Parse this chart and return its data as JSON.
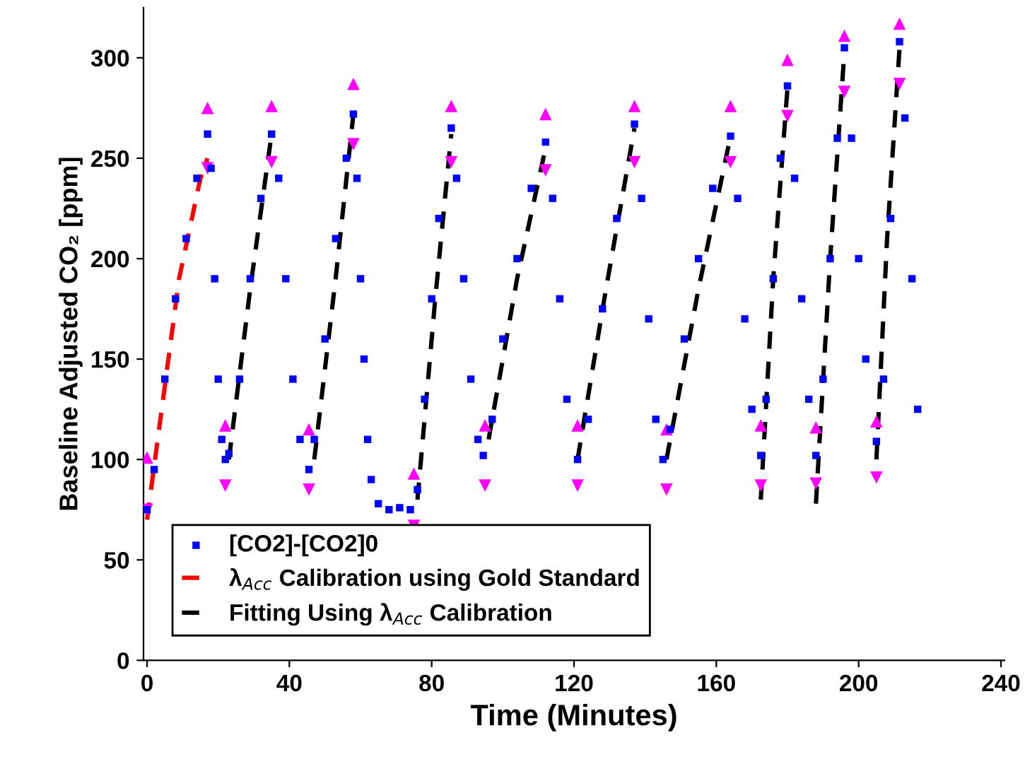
{
  "chart_data": {
    "type": "scatter",
    "xlabel": "Time (Minutes)",
    "ylabel": "Baseline Adjusted CO₂ [ppm]",
    "xlim": [
      -1,
      241
    ],
    "ylim": [
      0,
      325
    ],
    "xticks": [
      0,
      40,
      80,
      120,
      160,
      200,
      240
    ],
    "yticks": [
      0,
      50,
      100,
      150,
      200,
      250,
      300
    ],
    "grid": false,
    "legend": "bottom left",
    "series": [
      {
        "name": "[CO2]-[CO2]0",
        "marker": "square",
        "color": "#0000ff",
        "x": [
          0,
          2,
          5,
          8,
          11,
          14,
          17,
          18,
          19,
          20,
          21,
          22,
          23,
          26,
          29,
          32,
          35,
          37,
          39,
          41,
          43,
          45.5,
          47,
          50,
          53,
          56,
          58,
          59,
          60,
          61,
          62,
          63,
          65,
          68,
          71,
          74,
          76,
          78,
          80,
          82,
          85.5,
          87,
          89,
          91,
          93,
          94.5,
          97,
          100,
          104,
          108,
          112,
          114,
          116,
          118,
          121,
          124,
          128,
          132,
          137,
          139,
          141,
          143,
          145,
          147,
          151,
          155,
          159,
          164,
          166,
          168,
          170,
          172.5,
          174,
          176,
          178,
          180,
          182,
          184,
          186,
          188,
          190,
          192,
          194,
          196,
          198,
          200,
          202,
          205,
          207,
          209,
          211.5,
          213,
          215,
          216.6
        ],
        "values": [
          75,
          95,
          140,
          180,
          210,
          240,
          262,
          245,
          190,
          140,
          110,
          100,
          103,
          140,
          190,
          230,
          262,
          240,
          190,
          140,
          110,
          95,
          110,
          160,
          210,
          250,
          272,
          240,
          190,
          150,
          110,
          90,
          78,
          75,
          76,
          75,
          85,
          130,
          180,
          220,
          265,
          240,
          190,
          140,
          110,
          102,
          120,
          160,
          200,
          235,
          258,
          230,
          180,
          130,
          100,
          120,
          175,
          220,
          267,
          230,
          170,
          120,
          100,
          115,
          160,
          200,
          235,
          261,
          230,
          170,
          125,
          102,
          130,
          190,
          250,
          286,
          240,
          180,
          130,
          102,
          140,
          200,
          260,
          305,
          260,
          200,
          150,
          109,
          140,
          220,
          308,
          270,
          190,
          125
        ]
      },
      {
        "name": "λ$_{Acc}$ Calibration using Gold Standard",
        "type": "line",
        "line_style": "dashed",
        "color": "#ff0000",
        "x": [
          0,
          3,
          6,
          9,
          12,
          15,
          17
        ],
        "values": [
          70,
          110,
          150,
          190,
          215,
          240,
          250
        ]
      },
      {
        "name": "Fitting Using λ$_{Acc}$ Calibration",
        "type": "line",
        "line_style": "dashed",
        "color": "#000000",
        "x": [
          23,
          29,
          35,
          36,
          47,
          53,
          58,
          59,
          76,
          81,
          85.5,
          86,
          96,
          104,
          112,
          113,
          121,
          129,
          137,
          138,
          146,
          155,
          164,
          165,
          172.5,
          176,
          180,
          181,
          188,
          192,
          196,
          197,
          205,
          208,
          211.5
        ],
        "values": [
          100,
          185,
          262,
          null,
          100,
          190,
          272,
          null,
          80,
          180,
          262,
          null,
          110,
          190,
          255,
          null,
          100,
          185,
          265,
          null,
          100,
          185,
          261,
          null,
          80,
          190,
          285,
          null,
          78,
          200,
          303,
          null,
          100,
          210,
          305
        ]
      },
      {
        "marker": "triangle",
        "color": "#ff00ff",
        "x": [
          0,
          17,
          22,
          35,
          45.5,
          58,
          75,
          85.5,
          95,
          112,
          121,
          137,
          146,
          164,
          172.5,
          180,
          188,
          196,
          205,
          211.5
        ],
        "values": [
          101,
          275,
          117,
          276,
          115,
          287,
          93,
          276,
          117,
          272,
          117,
          276,
          115,
          276,
          117,
          299,
          116,
          311,
          119,
          317
        ]
      },
      {
        "marker": "triangle_down",
        "color": "#ff00ff",
        "x": [
          0,
          17,
          22,
          35,
          45.5,
          58,
          75,
          85.5,
          95,
          112,
          121,
          137,
          146,
          164,
          172.5,
          180,
          188,
          196,
          205,
          211.5
        ],
        "values": [
          75,
          245,
          87,
          248,
          85,
          257,
          67,
          248,
          87,
          244,
          87,
          248,
          85,
          248,
          87,
          271,
          88,
          283,
          91,
          287
        ]
      }
    ]
  }
}
